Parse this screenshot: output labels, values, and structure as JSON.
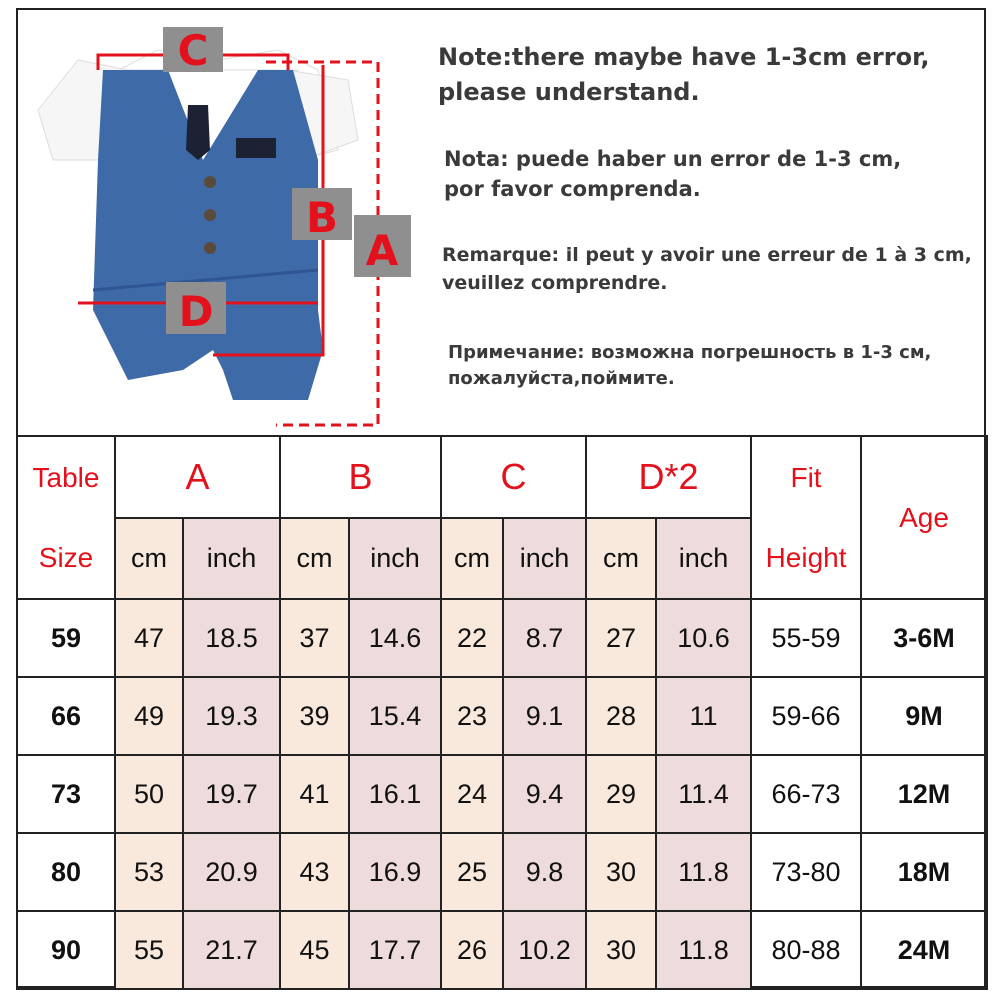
{
  "diagram": {
    "labels": {
      "a": "A",
      "b": "B",
      "c": "C",
      "d": "D"
    },
    "colors": {
      "marker": "#e3111b",
      "label_box": "#8f8f8f",
      "garment": "#3e6aa8"
    }
  },
  "notes": [
    {
      "line1": "Note:there maybe have 1-3cm error,",
      "line2": "please understand."
    },
    {
      "line1": "Nota: puede haber un error de 1-3 cm,",
      "line2": "por favor comprenda."
    },
    {
      "line1": "Remarque: il peut y avoir une erreur de 1 à 3 cm,",
      "line2": " veuillez comprendre."
    },
    {
      "line1": "Примечание: возможна погрешность в 1-3 см,",
      "line2": "пожалуйста,поймите."
    }
  ],
  "table": {
    "header": {
      "table_label": "Table",
      "size_label": "Size",
      "groups": [
        "A",
        "B",
        "C",
        "D*2"
      ],
      "cm": "cm",
      "inch": "inch",
      "fit_label": "Fit",
      "height_label": "Height",
      "age_label": "Age"
    },
    "rows": [
      {
        "size": "59",
        "a_cm": "47",
        "a_in": "18.5",
        "b_cm": "37",
        "b_in": "14.6",
        "c_cm": "22",
        "c_in": "8.7",
        "d_cm": "27",
        "d_in": "10.6",
        "height": "55-59",
        "age": "3-6M"
      },
      {
        "size": "66",
        "a_cm": "49",
        "a_in": "19.3",
        "b_cm": "39",
        "b_in": "15.4",
        "c_cm": "23",
        "c_in": "9.1",
        "d_cm": "28",
        "d_in": "11",
        "height": "59-66",
        "age": "9M"
      },
      {
        "size": "73",
        "a_cm": "50",
        "a_in": "19.7",
        "b_cm": "41",
        "b_in": "16.1",
        "c_cm": "24",
        "c_in": "9.4",
        "d_cm": "29",
        "d_in": "11.4",
        "height": "66-73",
        "age": "12M"
      },
      {
        "size": "80",
        "a_cm": "53",
        "a_in": "20.9",
        "b_cm": "43",
        "b_in": "16.9",
        "c_cm": "25",
        "c_in": "9.8",
        "d_cm": "30",
        "d_in": "11.8",
        "height": "73-80",
        "age": "18M"
      },
      {
        "size": "90",
        "a_cm": "55",
        "a_in": "21.7",
        "b_cm": "45",
        "b_in": "17.7",
        "c_cm": "26",
        "c_in": "10.2",
        "d_cm": "30",
        "d_in": "11.8",
        "height": "80-88",
        "age": "24M"
      }
    ]
  }
}
